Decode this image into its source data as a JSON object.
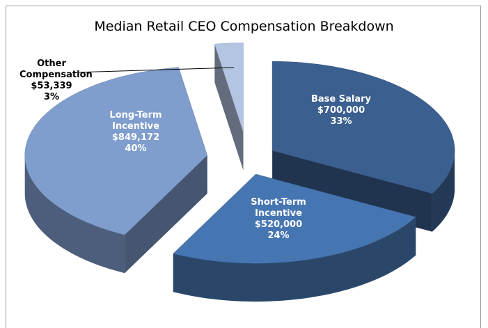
{
  "chart_data": {
    "type": "pie3d",
    "title": "Median Retail CEO Compensation Breakdown",
    "categories": [
      "Base Salary",
      "Short-Term Incentive",
      "Long-Term Incentive",
      "Other Compensation"
    ],
    "values": [
      700000,
      520000,
      849172,
      53339
    ],
    "value_labels": [
      "$700,000",
      "$520,000",
      "$849,172",
      "$53,339"
    ],
    "percent_labels": [
      "33%",
      "24%",
      "40%",
      "3%"
    ],
    "colors": [
      "#3b5f8f",
      "#4676b1",
      "#7f9dcd",
      "#b3c5e3"
    ]
  }
}
